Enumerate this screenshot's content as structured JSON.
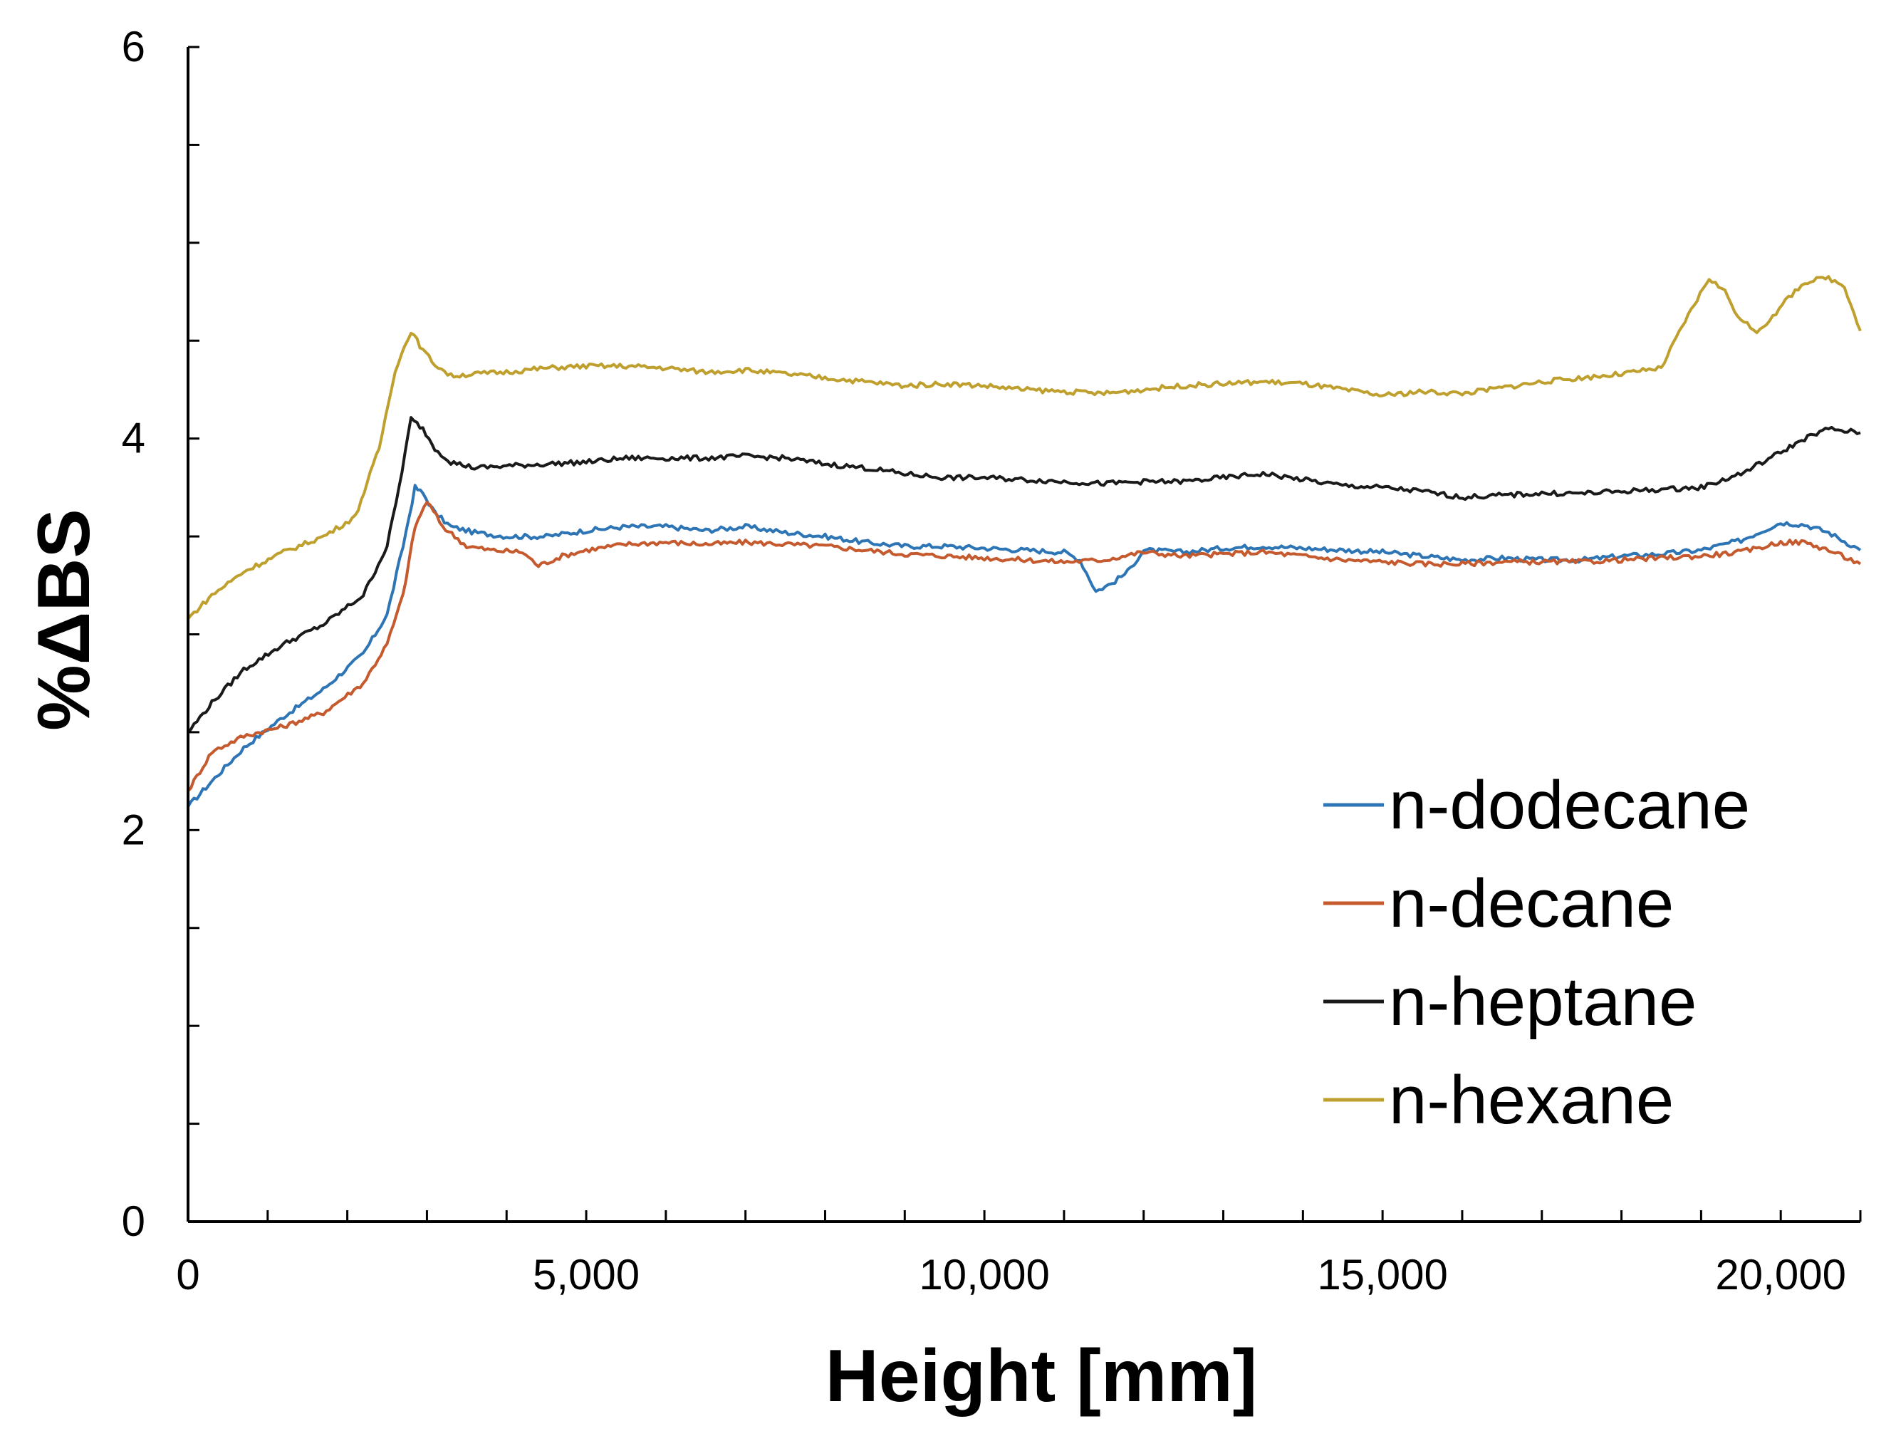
{
  "chart_data": {
    "type": "line",
    "title": "",
    "xlabel": "Height [mm]",
    "ylabel": "%ΔBS",
    "xlim": [
      0,
      21000
    ],
    "ylim": [
      0,
      6
    ],
    "xticks": [
      0,
      5000,
      10000,
      15000,
      20000
    ],
    "xtick_labels": [
      "0",
      "5,000",
      "10,000",
      "15,000",
      "20,000"
    ],
    "xminor_step": 1000,
    "yticks": [
      0,
      2,
      4,
      6
    ],
    "ytick_labels": [
      "0",
      "2",
      "4",
      "6"
    ],
    "yminor_step": 0.5,
    "grid": false,
    "legend_position": "lower-right",
    "series": [
      {
        "name": "n-dodecane",
        "color": "#2E75B6",
        "x": [
          0,
          300,
          700,
          1200,
          1700,
          2200,
          2500,
          2700,
          2850,
          2950,
          3100,
          3300,
          3600,
          4000,
          4500,
          5000,
          5500,
          6000,
          6500,
          7000,
          7500,
          8000,
          8500,
          9000,
          9500,
          10000,
          10500,
          11000,
          11200,
          11400,
          11600,
          11800,
          12000,
          12500,
          13000,
          13500,
          14000,
          14500,
          15000,
          15500,
          16000,
          16500,
          17000,
          17500,
          18000,
          18500,
          19000,
          19500,
          20000,
          20300,
          20600,
          21000
        ],
        "y": [
          2.12,
          2.25,
          2.42,
          2.58,
          2.72,
          2.9,
          3.1,
          3.45,
          3.75,
          3.72,
          3.62,
          3.55,
          3.52,
          3.5,
          3.5,
          3.53,
          3.55,
          3.55,
          3.53,
          3.55,
          3.52,
          3.5,
          3.47,
          3.45,
          3.45,
          3.44,
          3.43,
          3.42,
          3.38,
          3.22,
          3.26,
          3.32,
          3.43,
          3.42,
          3.44,
          3.45,
          3.44,
          3.43,
          3.42,
          3.4,
          3.38,
          3.39,
          3.38,
          3.38,
          3.4,
          3.41,
          3.43,
          3.48,
          3.57,
          3.56,
          3.52,
          3.43
        ]
      },
      {
        "name": "n-decane",
        "color": "#C55A2E",
        "x": [
          0,
          300,
          700,
          1200,
          1700,
          2200,
          2500,
          2700,
          2850,
          3000,
          3200,
          3500,
          3800,
          4200,
          4400,
          4700,
          5000,
          5500,
          6000,
          6500,
          7000,
          7500,
          8000,
          8500,
          9000,
          9500,
          10000,
          10500,
          11000,
          11500,
          12000,
          12500,
          13000,
          13500,
          14000,
          14500,
          15000,
          15500,
          16000,
          16500,
          17000,
          17500,
          18000,
          18500,
          19000,
          19500,
          20000,
          20300,
          20600,
          21000
        ],
        "y": [
          2.2,
          2.4,
          2.48,
          2.53,
          2.6,
          2.75,
          2.95,
          3.2,
          3.55,
          3.68,
          3.55,
          3.45,
          3.43,
          3.42,
          3.35,
          3.4,
          3.43,
          3.46,
          3.47,
          3.46,
          3.47,
          3.46,
          3.45,
          3.43,
          3.41,
          3.4,
          3.39,
          3.38,
          3.37,
          3.38,
          3.42,
          3.4,
          3.41,
          3.42,
          3.4,
          3.38,
          3.37,
          3.36,
          3.36,
          3.37,
          3.37,
          3.37,
          3.38,
          3.39,
          3.4,
          3.42,
          3.47,
          3.47,
          3.43,
          3.36
        ]
      },
      {
        "name": "n-heptane",
        "color": "#1A1A1A",
        "x": [
          0,
          300,
          700,
          1200,
          1700,
          2200,
          2500,
          2650,
          2800,
          2950,
          3100,
          3300,
          3600,
          4000,
          4500,
          5000,
          5500,
          6000,
          6500,
          7000,
          7500,
          8000,
          8500,
          9000,
          9500,
          10000,
          10500,
          11000,
          11500,
          12000,
          12500,
          13000,
          13500,
          14000,
          14500,
          15000,
          15500,
          16000,
          16500,
          17000,
          17500,
          18000,
          18500,
          19000,
          19500,
          20000,
          20300,
          20600,
          21000
        ],
        "y": [
          2.5,
          2.65,
          2.82,
          2.95,
          3.05,
          3.2,
          3.45,
          3.75,
          4.1,
          4.05,
          3.95,
          3.88,
          3.85,
          3.86,
          3.87,
          3.88,
          3.9,
          3.9,
          3.9,
          3.91,
          3.9,
          3.87,
          3.85,
          3.82,
          3.8,
          3.8,
          3.79,
          3.78,
          3.77,
          3.78,
          3.78,
          3.8,
          3.82,
          3.79,
          3.76,
          3.75,
          3.73,
          3.7,
          3.71,
          3.72,
          3.72,
          3.73,
          3.74,
          3.75,
          3.82,
          3.93,
          4.0,
          4.05,
          4.03
        ]
      },
      {
        "name": "n-hexane",
        "color": "#BFA02E",
        "x": [
          0,
          300,
          700,
          1200,
          1700,
          2100,
          2400,
          2600,
          2800,
          2950,
          3100,
          3300,
          3600,
          4000,
          4500,
          5000,
          5500,
          6000,
          6500,
          7000,
          7500,
          8000,
          8500,
          9000,
          9500,
          10000,
          10500,
          11000,
          11500,
          12000,
          12500,
          13000,
          13500,
          14000,
          14500,
          15000,
          15500,
          16000,
          16500,
          17000,
          17500,
          18000,
          18500,
          18800,
          19100,
          19300,
          19500,
          19700,
          19900,
          20100,
          20300,
          20600,
          20800,
          21000
        ],
        "y": [
          3.08,
          3.2,
          3.32,
          3.42,
          3.5,
          3.6,
          3.95,
          4.35,
          4.55,
          4.45,
          4.38,
          4.32,
          4.33,
          4.34,
          4.36,
          4.37,
          4.37,
          4.36,
          4.34,
          4.35,
          4.33,
          4.31,
          4.29,
          4.27,
          4.28,
          4.27,
          4.25,
          4.24,
          4.23,
          4.25,
          4.27,
          4.28,
          4.29,
          4.28,
          4.25,
          4.22,
          4.24,
          4.23,
          4.26,
          4.29,
          4.31,
          4.33,
          4.36,
          4.6,
          4.82,
          4.75,
          4.6,
          4.55,
          4.62,
          4.72,
          4.8,
          4.82,
          4.78,
          4.55
        ]
      }
    ]
  }
}
